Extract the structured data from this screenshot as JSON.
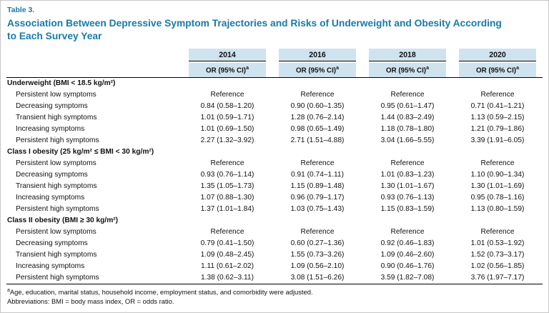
{
  "table_label": "Table 3.",
  "title": "Association Between Depressive Symptom Trajectories and Risks of Underweight and Obesity According to Each Survey Year",
  "columns": [
    "2014",
    "2016",
    "2018",
    "2020"
  ],
  "or_header": {
    "base": "OR (95% CI)",
    "sup": "a"
  },
  "sections": [
    {
      "name": "Underweight (BMI < 18.5 kg/m²)",
      "rows": [
        {
          "label": "Persistent low symptoms",
          "values": [
            "Reference",
            "Reference",
            "Reference",
            "Reference"
          ]
        },
        {
          "label": "Decreasing symptoms",
          "values": [
            "0.84 (0.58–1.20)",
            "0.90 (0.60–1.35)",
            "0.95 (0.61–1.47)",
            "0.71 (0.41–1.21)"
          ]
        },
        {
          "label": "Transient high symptoms",
          "values": [
            "1.01 (0.59–1.71)",
            "1.28 (0.76–2.14)",
            "1.44 (0.83–2.49)",
            "1.13 (0.59–2.15)"
          ]
        },
        {
          "label": "Increasing symptoms",
          "values": [
            "1.01 (0.69–1.50)",
            "0.98 (0.65–1.49)",
            "1.18 (0.78–1.80)",
            "1.21 (0.79–1.86)"
          ]
        },
        {
          "label": "Persistent high symptoms",
          "values": [
            "2.27 (1.32–3.92)",
            "2.71 (1.51–4.88)",
            "3.04 (1.66–5.55)",
            "3.39 (1.91–6.05)"
          ]
        }
      ]
    },
    {
      "name": "Class I obesity (25 kg/m² ≤ BMI < 30 kg/m²)",
      "rows": [
        {
          "label": "Persistent low symptoms",
          "values": [
            "Reference",
            "Reference",
            "Reference",
            "Reference"
          ]
        },
        {
          "label": "Decreasing symptoms",
          "values": [
            "0.93 (0.76–1.14)",
            "0.91 (0.74–1.11)",
            "1.01 (0.83–1.23)",
            "1.10 (0.90–1.34)"
          ]
        },
        {
          "label": "Transient high symptoms",
          "values": [
            "1.35 (1.05–1.73)",
            "1.15 (0.89–1.48)",
            "1.30 (1.01–1.67)",
            "1.30 (1.01–1.69)"
          ]
        },
        {
          "label": "Increasing symptoms",
          "values": [
            "1.07 (0.88–1.30)",
            "0.96 (0.79–1.17)",
            "0.93 (0.76–1.13)",
            "0.95 (0.78–1.16)"
          ]
        },
        {
          "label": "Persistent high symptoms",
          "values": [
            "1.37 (1.01–1.84)",
            "1.03 (0.75–1.43)",
            "1.15 (0.83–1.59)",
            "1.13 (0.80–1.59)"
          ]
        }
      ]
    },
    {
      "name": "Class II obesity (BMI ≥ 30 kg/m²)",
      "rows": [
        {
          "label": "Persistent low symptoms",
          "values": [
            "Reference",
            "Reference",
            "Reference",
            "Reference"
          ]
        },
        {
          "label": "Decreasing symptoms",
          "values": [
            "0.79 (0.41–1.50)",
            "0.60 (0.27–1.36)",
            "0.92 (0.46–1.83)",
            "1.01 (0.53–1.92)"
          ]
        },
        {
          "label": "Transient high symptoms",
          "values": [
            "1.09 (0.48–2.45)",
            "1.55 (0.73–3.26)",
            "1.09 (0.46–2.60)",
            "1.52 (0.73–3.17)"
          ]
        },
        {
          "label": "Increasing symptoms",
          "values": [
            "1.11 (0.61–2.02)",
            "1.09 (0.56–2.10)",
            "0.90 (0.46–1.76)",
            "1.02 (0.56–1.85)"
          ]
        },
        {
          "label": "Persistent high symptoms",
          "values": [
            "1.38 (0.62–3.11)",
            "3.08 (1.51–6.26)",
            "3.59 (1.82–7.08)",
            "3.76 (1.97–7.17)"
          ]
        }
      ]
    }
  ],
  "footnotes": [
    {
      "sup": "a",
      "text": "Age, education, marital status, household income, employment status, and comorbidity were adjusted."
    },
    {
      "sup": "",
      "text": "Abbreviations: BMI = body mass index, OR = odds ratio."
    }
  ],
  "colors": {
    "accent": "#1a7aa8",
    "header_bg": "#cfe3ef"
  }
}
